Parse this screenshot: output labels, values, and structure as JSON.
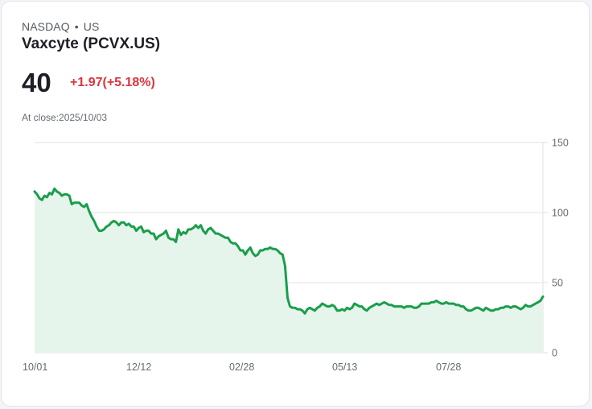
{
  "header": {
    "exchange": "NASDAQ",
    "separator": "•",
    "region": "US",
    "title": "Vaxcyte (PCVX.US)",
    "price": "40",
    "change": "+1.97(+5.18%)",
    "close_label": "At close:2025/10/03"
  },
  "colors": {
    "line": "#1a9e4b",
    "fill": "#e6f5ec",
    "grid": "#e2e2e2",
    "change": "#d9363e"
  },
  "chart_data": {
    "type": "area",
    "title": "Vaxcyte (PCVX.US)",
    "xlabel": "",
    "ylabel": "",
    "ylim": [
      0,
      150
    ],
    "yticks": [
      0,
      50,
      100,
      150
    ],
    "xtick_labels": [
      "10/01",
      "12/12",
      "02/28",
      "05/13",
      "07/28"
    ],
    "grid": true,
    "y_axis_position": "right",
    "values": [
      115,
      113,
      110,
      109,
      112,
      111,
      114,
      113,
      117,
      115,
      114,
      112,
      113,
      113,
      112,
      106,
      107,
      107,
      107,
      105,
      104,
      106,
      101,
      97,
      94,
      90,
      87,
      87,
      88,
      90,
      91,
      93,
      94,
      93,
      91,
      93,
      93,
      91,
      92,
      90,
      90,
      87,
      89,
      90,
      86,
      87,
      87,
      85,
      85,
      81,
      83,
      84,
      85,
      87,
      82,
      81,
      81,
      79,
      88,
      84,
      86,
      85,
      88,
      88,
      89,
      91,
      89,
      91,
      87,
      85,
      88,
      89,
      87,
      85,
      85,
      84,
      83,
      82,
      82,
      79,
      78,
      78,
      76,
      73,
      73,
      70,
      73,
      75,
      71,
      69,
      70,
      73,
      73,
      74,
      74,
      75,
      74,
      74,
      73,
      71,
      70,
      62,
      39,
      33,
      32,
      32,
      31,
      31,
      30,
      28,
      31,
      32,
      31,
      30,
      32,
      33,
      35,
      34,
      33,
      33,
      34,
      33,
      30,
      30,
      31,
      30,
      32,
      31,
      32,
      35,
      34,
      33,
      33,
      31,
      30,
      32,
      33,
      34,
      35,
      34,
      35,
      36,
      35,
      34,
      34,
      33,
      33,
      33,
      33,
      32,
      33,
      33,
      33,
      32,
      32,
      33,
      35,
      35,
      35,
      35,
      36,
      36,
      37,
      36,
      35,
      35,
      36,
      35,
      35,
      35,
      34,
      34,
      33,
      33,
      31,
      30,
      30,
      31,
      32,
      32,
      31,
      30,
      32,
      31,
      30,
      30,
      31,
      31,
      32,
      32,
      33,
      33,
      32,
      33,
      33,
      32,
      31,
      32,
      34,
      33,
      33,
      34,
      35,
      36,
      37,
      40
    ]
  }
}
